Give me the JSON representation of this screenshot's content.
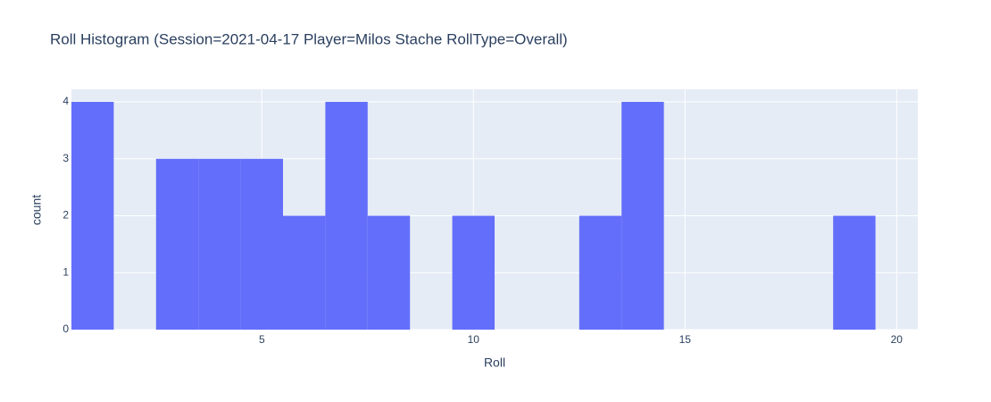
{
  "chart_data": {
    "type": "histogram",
    "title": "Roll Histogram (Session=2021-04-17 Player=Milos Stache RollType=Overall)",
    "x_label": "Roll",
    "y_label": "count",
    "bins": [
      0.5,
      1.5,
      2.5,
      3.5,
      4.5,
      5.5,
      6.5,
      7.5,
      8.5,
      9.5,
      10.5,
      11.5,
      12.5,
      13.5,
      14.5,
      15.5,
      16.5,
      17.5,
      18.5,
      19.5,
      20.5
    ],
    "values": [
      4,
      0,
      3,
      3,
      3,
      2,
      4,
      2,
      0,
      2,
      0,
      0,
      2,
      4,
      0,
      0,
      0,
      0,
      2,
      0
    ],
    "color": "#636efa",
    "xlim": [
      0.5,
      20.5
    ],
    "xticks": [
      5,
      10,
      15,
      20
    ],
    "ylim": [
      0,
      4.22
    ],
    "yticks": [
      0,
      1,
      2,
      3,
      4
    ],
    "grid": true
  }
}
